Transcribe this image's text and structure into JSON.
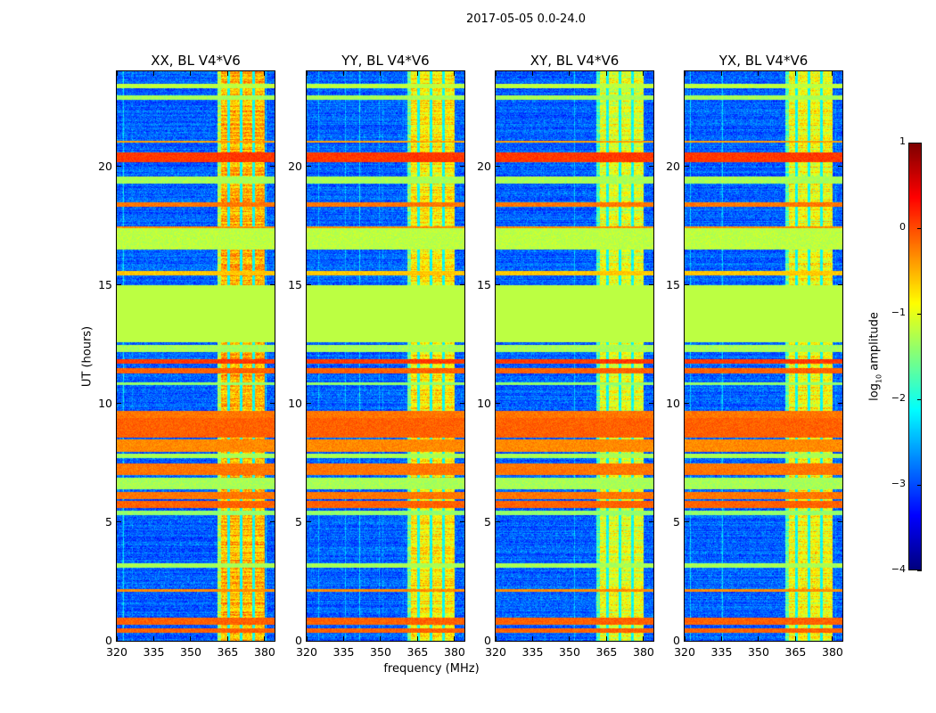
{
  "suptitle": "2017-05-05 0.0-24.0",
  "chart_data": {
    "type": "heatmap",
    "title": "2017-05-05 0.0-24.0",
    "xlabel": "frequency (MHz)",
    "ylabel": "UT (hours)",
    "xlim": [
      320,
      384
    ],
    "ylim": [
      0,
      24
    ],
    "xticks": [
      320,
      335,
      350,
      365,
      380
    ],
    "yticks": [
      0,
      5,
      10,
      15,
      20
    ],
    "colormap": "jet",
    "clim": [
      -4,
      1
    ],
    "colorbar_ticks": [
      1,
      0,
      -1,
      -2,
      -3,
      -4
    ],
    "colorbar_label": {
      "base": "log",
      "sub": "10",
      "rest": " amplitude"
    },
    "panels": [
      {
        "title": "XX, BL V4*V6",
        "seed": 11,
        "rfi_level": -0.5
      },
      {
        "title": "YY, BL V4*V6",
        "seed": 23,
        "rfi_level": -0.8
      },
      {
        "title": "XY, BL V4*V6",
        "seed": 37,
        "rfi_level": -1.0
      },
      {
        "title": "YX, BL V4*V6",
        "seed": 51,
        "rfi_level": -0.9
      }
    ],
    "background_level": -2.9,
    "rfi_band_mhz": [
      360.5,
      380
    ],
    "rfi_gaps_mhz": [
      365.2,
      370.2,
      375.3
    ],
    "flagged_hours": [
      12.6,
      15.0
    ],
    "flagged_level": -1.2,
    "time_bands": [
      {
        "t": [
          0.35,
          0.55
        ],
        "level": -0.1
      },
      {
        "t": [
          0.7,
          1.0
        ],
        "level": -0.1
      },
      {
        "t": [
          2.1,
          2.2
        ],
        "level": -0.3
      },
      {
        "t": [
          3.1,
          3.3
        ],
        "level": -1.3
      },
      {
        "t": [
          5.3,
          5.5
        ],
        "level": -1.4
      },
      {
        "t": [
          5.6,
          5.9
        ],
        "level": -0.1
      },
      {
        "t": [
          6.0,
          6.3
        ],
        "level": -0.2
      },
      {
        "t": [
          6.4,
          6.9
        ],
        "level": -1.3
      },
      {
        "t": [
          7.0,
          7.5
        ],
        "level": -0.2
      },
      {
        "t": [
          7.7,
          7.9
        ],
        "level": -1.3
      },
      {
        "t": [
          8.0,
          8.5
        ],
        "level": -0.3
      },
      {
        "t": [
          8.6,
          9.4
        ],
        "level": -0.1
      },
      {
        "t": [
          9.4,
          9.7
        ],
        "level": -0.2
      },
      {
        "t": [
          10.8,
          10.9
        ],
        "level": -1.4
      },
      {
        "t": [
          11.3,
          11.5
        ],
        "level": -0.1
      },
      {
        "t": [
          11.7,
          11.9
        ],
        "level": 0.1
      },
      {
        "t": [
          12.2,
          12.5
        ],
        "level": -1.3
      },
      {
        "t": [
          15.4,
          15.6
        ],
        "level": -0.6
      },
      {
        "t": [
          16.5,
          17.4
        ],
        "level": -1.2
      },
      {
        "t": [
          17.4,
          17.5
        ],
        "level": -0.3
      },
      {
        "t": [
          18.3,
          18.5
        ],
        "level": -0.2
      },
      {
        "t": [
          19.3,
          19.6
        ],
        "level": -1.3
      },
      {
        "t": [
          20.2,
          20.6
        ],
        "level": 0.1
      },
      {
        "t": [
          21.0,
          21.1
        ],
        "level": -0.4
      },
      {
        "t": [
          22.8,
          23.0
        ],
        "level": -1.3
      },
      {
        "t": [
          23.3,
          23.5
        ],
        "level": -1.2
      }
    ]
  }
}
